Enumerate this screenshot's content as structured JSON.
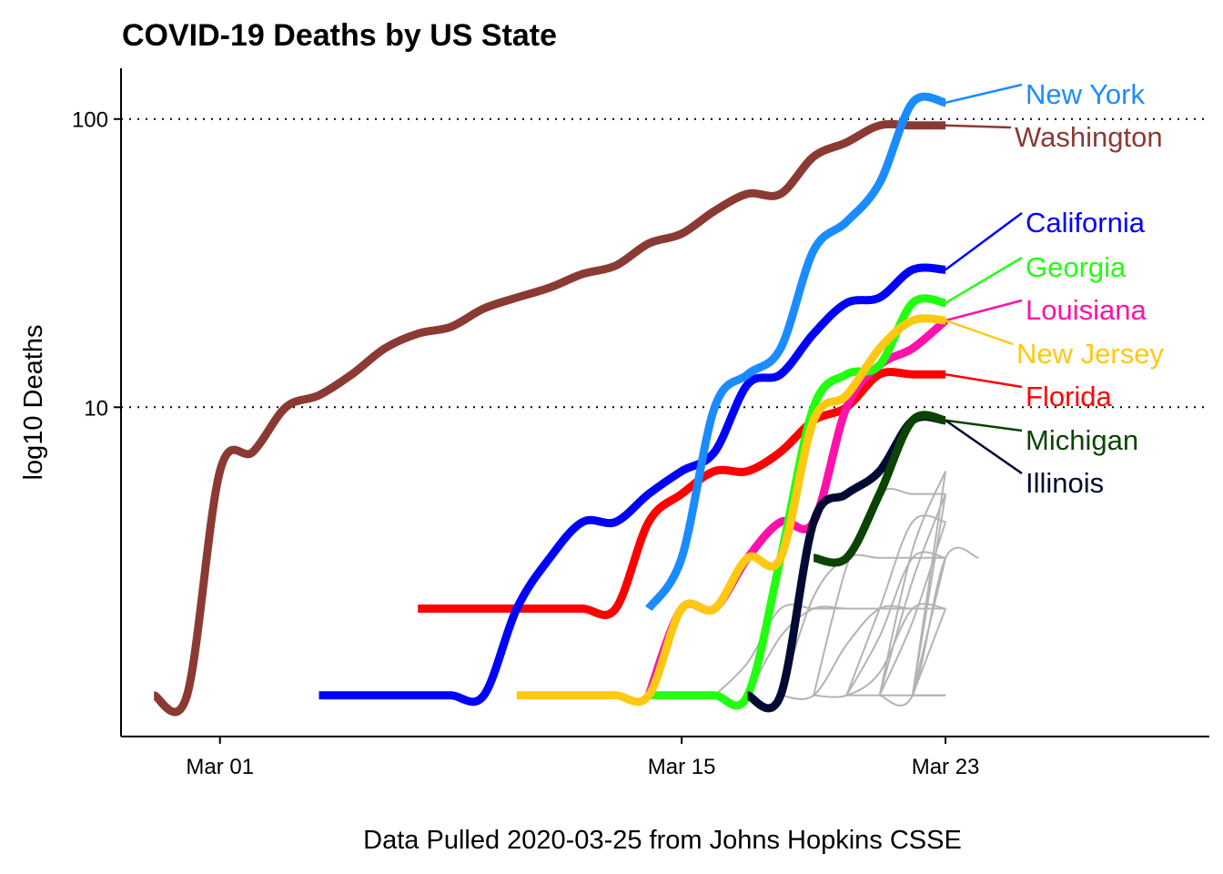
{
  "chart_data": {
    "type": "line",
    "title": "COVID-19 Deaths by US State",
    "xlabel": "Data Pulled 2020-03-25 from Johns Hopkins CSSE",
    "ylabel": "log10 Deaths",
    "y_scale": "log10",
    "x_ticks": [
      {
        "date": "2020-03-01",
        "label": "Mar 01"
      },
      {
        "date": "2020-03-15",
        "label": "Mar 15"
      },
      {
        "date": "2020-03-23",
        "label": "Mar 23"
      }
    ],
    "y_ticks": [
      {
        "value": 10,
        "label": "10"
      },
      {
        "value": 100,
        "label": "100"
      }
    ],
    "xlim": [
      "2020-02-27",
      "2020-03-31"
    ],
    "ylim": [
      0.72,
      150
    ],
    "grid": "dotted horizontal lines at 10 and 100",
    "legend": "direct labels at right end of lines",
    "highlighted_series": [
      {
        "name": "New York",
        "color": "#1a8cff",
        "x": [
          "2020-03-14",
          "2020-03-15",
          "2020-03-16",
          "2020-03-17",
          "2020-03-18",
          "2020-03-19",
          "2020-03-20",
          "2020-03-21",
          "2020-03-22",
          "2020-03-23"
        ],
        "y": [
          2,
          3,
          10,
          13,
          16,
          35,
          44,
          60,
          114,
          114
        ]
      },
      {
        "name": "Washington",
        "color": "#8b3a33",
        "x": [
          "2020-02-28",
          "2020-02-29",
          "2020-03-01",
          "2020-03-02",
          "2020-03-03",
          "2020-03-04",
          "2020-03-05",
          "2020-03-06",
          "2020-03-07",
          "2020-03-08",
          "2020-03-09",
          "2020-03-10",
          "2020-03-11",
          "2020-03-12",
          "2020-03-13",
          "2020-03-14",
          "2020-03-15",
          "2020-03-16",
          "2020-03-17",
          "2020-03-18",
          "2020-03-19",
          "2020-03-20",
          "2020-03-21",
          "2020-03-22",
          "2020-03-23"
        ],
        "y": [
          1,
          1,
          6,
          7,
          10,
          11,
          13,
          16,
          18,
          19,
          22,
          24,
          26,
          29,
          31,
          37,
          40,
          48,
          55,
          55,
          74,
          83,
          95,
          95,
          95
        ]
      },
      {
        "name": "California",
        "color": "#0000ff",
        "x": [
          "2020-03-04",
          "2020-03-05",
          "2020-03-06",
          "2020-03-07",
          "2020-03-08",
          "2020-03-09",
          "2020-03-10",
          "2020-03-11",
          "2020-03-12",
          "2020-03-13",
          "2020-03-14",
          "2020-03-15",
          "2020-03-16",
          "2020-03-17",
          "2020-03-18",
          "2020-03-19",
          "2020-03-20",
          "2020-03-21",
          "2020-03-22",
          "2020-03-23"
        ],
        "y": [
          1,
          1,
          1,
          1,
          1,
          1,
          2,
          3,
          4,
          4,
          5,
          6,
          7,
          12,
          13,
          18,
          23,
          24,
          30,
          30
        ]
      },
      {
        "name": "Georgia",
        "color": "#22ff11",
        "x": [
          "2020-03-14",
          "2020-03-15",
          "2020-03-16",
          "2020-03-17",
          "2020-03-18",
          "2020-03-19",
          "2020-03-20",
          "2020-03-21",
          "2020-03-22",
          "2020-03-23"
        ],
        "y": [
          1,
          1,
          1,
          1,
          3,
          10,
          13,
          14,
          23,
          23
        ]
      },
      {
        "name": "Louisiana",
        "color": "#ff11aa",
        "x": [
          "2020-03-14",
          "2020-03-15",
          "2020-03-16",
          "2020-03-17",
          "2020-03-18",
          "2020-03-19",
          "2020-03-20",
          "2020-03-21",
          "2020-03-22",
          "2020-03-23"
        ],
        "y": [
          1,
          2,
          2,
          3,
          4,
          4,
          10,
          14,
          16,
          20
        ]
      },
      {
        "name": "New Jersey",
        "color": "#ffc811",
        "x": [
          "2020-03-10",
          "2020-03-11",
          "2020-03-12",
          "2020-03-13",
          "2020-03-14",
          "2020-03-15",
          "2020-03-16",
          "2020-03-17",
          "2020-03-18",
          "2020-03-19",
          "2020-03-20",
          "2020-03-21",
          "2020-03-22",
          "2020-03-23"
        ],
        "y": [
          1,
          1,
          1,
          1,
          1,
          2,
          2,
          3,
          3,
          9,
          11,
          16,
          20,
          20
        ]
      },
      {
        "name": "Florida",
        "color": "#ff0000",
        "x": [
          "2020-03-07",
          "2020-03-08",
          "2020-03-09",
          "2020-03-10",
          "2020-03-11",
          "2020-03-12",
          "2020-03-13",
          "2020-03-14",
          "2020-03-15",
          "2020-03-16",
          "2020-03-17",
          "2020-03-18",
          "2020-03-19",
          "2020-03-20",
          "2020-03-21",
          "2020-03-22",
          "2020-03-23"
        ],
        "y": [
          2,
          2,
          2,
          2,
          2,
          2,
          2,
          4,
          5,
          6,
          6,
          7,
          9,
          10,
          13,
          13,
          13
        ]
      },
      {
        "name": "Michigan",
        "color": "#0a4400",
        "x": [
          "2020-03-19",
          "2020-03-20",
          "2020-03-21",
          "2020-03-22",
          "2020-03-23"
        ],
        "y": [
          3,
          3,
          5,
          9,
          9
        ]
      },
      {
        "name": "Illinois",
        "color": "#000a33",
        "x": [
          "2020-03-17",
          "2020-03-18",
          "2020-03-19",
          "2020-03-20",
          "2020-03-21",
          "2020-03-22",
          "2020-03-23"
        ],
        "y": [
          1,
          1,
          4,
          5,
          6,
          9,
          9
        ]
      }
    ],
    "background_color": "#b3b3b3"
  }
}
